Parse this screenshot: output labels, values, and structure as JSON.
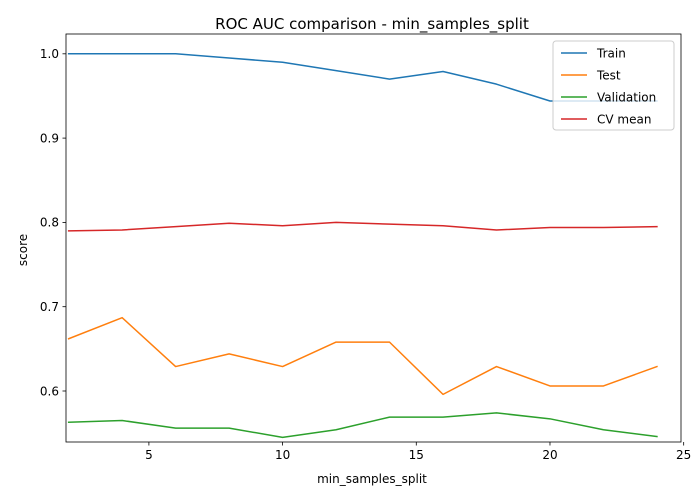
{
  "chart_data": {
    "type": "line",
    "title": "ROC AUC comparison - min_samples_split",
    "xlabel": "min_samples_split",
    "ylabel": "score",
    "xlim": [
      1.9,
      24.9
    ],
    "ylim": [
      0.5395,
      1.0235
    ],
    "xticks": [
      5,
      10,
      15,
      20,
      25
    ],
    "yticks": [
      0.6,
      0.7,
      0.8,
      0.9,
      1.0
    ],
    "xtick_labels": [
      "5",
      "10",
      "15",
      "20",
      "25"
    ],
    "ytick_labels": [
      "0.6",
      "0.7",
      "0.8",
      "0.9",
      "1.0"
    ],
    "grid": false,
    "legend_position": "top-right",
    "x": [
      2,
      4,
      6,
      8,
      10,
      12,
      14,
      16,
      18,
      20,
      22,
      24
    ],
    "series": [
      {
        "name": "Train",
        "color": "#1f77b4",
        "values": [
          1.0,
          1.0,
          1.0,
          0.995,
          0.99,
          0.98,
          0.97,
          0.979,
          0.964,
          0.944,
          0.944,
          0.944
        ]
      },
      {
        "name": "Test",
        "color": "#ff7f0e",
        "values": [
          0.662,
          0.687,
          0.629,
          0.644,
          0.629,
          0.658,
          0.658,
          0.596,
          0.629,
          0.606,
          0.606,
          0.629
        ]
      },
      {
        "name": "Validation",
        "color": "#2ca02c",
        "values": [
          0.563,
          0.565,
          0.556,
          0.556,
          0.545,
          0.554,
          0.569,
          0.569,
          0.574,
          0.567,
          0.554,
          0.546
        ]
      },
      {
        "name": "CV mean",
        "color": "#d62728",
        "values": [
          0.79,
          0.791,
          0.795,
          0.799,
          0.796,
          0.8,
          0.798,
          0.796,
          0.791,
          0.794,
          0.794,
          0.795
        ]
      }
    ]
  }
}
